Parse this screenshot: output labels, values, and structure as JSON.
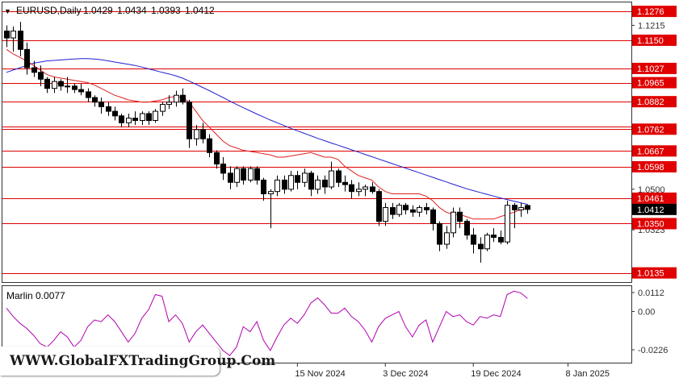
{
  "chart_data": [
    {
      "type": "candlestick",
      "title": "EURUSD,Daily",
      "ohlc_readout": [
        "1.0429",
        "1.0434",
        "1.0393",
        "1.0412"
      ],
      "ylim": [
        1.0095,
        1.1315
      ],
      "ytick_labels": [
        "1.1215",
        "1.0500",
        "1.0323"
      ],
      "xtick_labels": [
        "15 Nov 2024",
        "3 Dec 2024",
        "19 Dec 2024",
        "8 Jan 2025"
      ],
      "xtick_index": [
        43,
        56,
        69,
        83
      ],
      "grid": false,
      "current_price": 1.0412,
      "current_price_label": "1.0412",
      "levels": [
        {
          "label": "1.1276",
          "value": 1.1276
        },
        {
          "label": "1.1150",
          "value": 1.115
        },
        {
          "label": "1.1027",
          "value": 1.1027
        },
        {
          "label": "1.0965",
          "value": 1.0965
        },
        {
          "label": "1.0882",
          "value": 1.0882
        },
        {
          "label": "1.0762",
          "value": 1.0762
        },
        {
          "label": "",
          "value": 1.0772
        },
        {
          "label": "1.0667",
          "value": 1.0667
        },
        {
          "label": "1.0598",
          "value": 1.0598
        },
        {
          "label": "1.0461",
          "value": 1.0461
        },
        {
          "label": "1.0350",
          "value": 1.035
        },
        {
          "label": "1.0135",
          "value": 1.0135
        }
      ],
      "candles": [
        [
          1.119,
          1.1215,
          1.112,
          1.116
        ],
        [
          1.116,
          1.121,
          1.11,
          1.119
        ],
        [
          1.119,
          1.123,
          1.108,
          1.111
        ],
        [
          1.111,
          1.114,
          1.1,
          1.103
        ],
        [
          1.103,
          1.106,
          1.099,
          1.101
        ],
        [
          1.101,
          1.104,
          1.095,
          1.098
        ],
        [
          1.098,
          1.099,
          1.092,
          1.094
        ],
        [
          1.094,
          1.099,
          1.092,
          1.097
        ],
        [
          1.097,
          1.098,
          1.093,
          1.095
        ],
        [
          1.095,
          1.099,
          1.092,
          1.095
        ],
        [
          1.095,
          1.096,
          1.092,
          1.0935
        ],
        [
          1.0935,
          1.096,
          1.091,
          1.0925
        ],
        [
          1.0925,
          1.094,
          1.088,
          1.09
        ],
        [
          1.09,
          1.091,
          1.086,
          1.088
        ],
        [
          1.088,
          1.09,
          1.083,
          1.086
        ],
        [
          1.086,
          1.088,
          1.082,
          1.084
        ],
        [
          1.084,
          1.086,
          1.08,
          1.082
        ],
        [
          1.082,
          1.083,
          1.077,
          1.079
        ],
        [
          1.079,
          1.083,
          1.077,
          1.081
        ],
        [
          1.081,
          1.084,
          1.078,
          1.08
        ],
        [
          1.08,
          1.084,
          1.078,
          1.083
        ],
        [
          1.083,
          1.084,
          1.078,
          1.08
        ],
        [
          1.08,
          1.085,
          1.079,
          1.084
        ],
        [
          1.084,
          1.088,
          1.082,
          1.087
        ],
        [
          1.087,
          1.091,
          1.085,
          1.088
        ],
        [
          1.088,
          1.093,
          1.086,
          1.091
        ],
        [
          1.091,
          1.094,
          1.087,
          1.088
        ],
        [
          1.088,
          1.089,
          1.068,
          1.072
        ],
        [
          1.072,
          1.078,
          1.069,
          1.076
        ],
        [
          1.076,
          1.079,
          1.07,
          1.072
        ],
        [
          1.072,
          1.074,
          1.064,
          1.066
        ],
        [
          1.066,
          1.067,
          1.059,
          1.061
        ],
        [
          1.061,
          1.064,
          1.054,
          1.057
        ],
        [
          1.057,
          1.06,
          1.05,
          1.053
        ],
        [
          1.053,
          1.06,
          1.051,
          1.059
        ],
        [
          1.059,
          1.06,
          1.052,
          1.054
        ],
        [
          1.054,
          1.06,
          1.053,
          1.059
        ],
        [
          1.059,
          1.06,
          1.052,
          1.054
        ],
        [
          1.054,
          1.055,
          1.045,
          1.048
        ],
        [
          1.048,
          1.05,
          1.033,
          1.049
        ],
        [
          1.049,
          1.056,
          1.047,
          1.054
        ],
        [
          1.054,
          1.056,
          1.048,
          1.05
        ],
        [
          1.05,
          1.058,
          1.049,
          1.056
        ],
        [
          1.056,
          1.058,
          1.05,
          1.053
        ],
        [
          1.053,
          1.059,
          1.051,
          1.057
        ],
        [
          1.057,
          1.058,
          1.047,
          1.05
        ],
        [
          1.05,
          1.056,
          1.048,
          1.054
        ],
        [
          1.054,
          1.056,
          1.048,
          1.051
        ],
        [
          1.051,
          1.062,
          1.05,
          1.058
        ],
        [
          1.058,
          1.059,
          1.051,
          1.053
        ],
        [
          1.053,
          1.056,
          1.049,
          1.052
        ],
        [
          1.052,
          1.054,
          1.046,
          1.049
        ],
        [
          1.049,
          1.053,
          1.047,
          1.05
        ],
        [
          1.05,
          1.052,
          1.047,
          1.051
        ],
        [
          1.051,
          1.053,
          1.048,
          1.049
        ],
        [
          1.049,
          1.05,
          1.034,
          1.036
        ],
        [
          1.036,
          1.044,
          1.034,
          1.042
        ],
        [
          1.042,
          1.044,
          1.037,
          1.039
        ],
        [
          1.039,
          1.044,
          1.038,
          1.043
        ],
        [
          1.043,
          1.044,
          1.039,
          1.041
        ],
        [
          1.041,
          1.043,
          1.038,
          1.04
        ],
        [
          1.04,
          1.043,
          1.038,
          1.042
        ],
        [
          1.042,
          1.044,
          1.039,
          1.041
        ],
        [
          1.041,
          1.042,
          1.032,
          1.035
        ],
        [
          1.035,
          1.036,
          1.023,
          1.026
        ],
        [
          1.026,
          1.034,
          1.024,
          1.031
        ],
        [
          1.031,
          1.042,
          1.029,
          1.04
        ],
        [
          1.04,
          1.042,
          1.033,
          1.036
        ],
        [
          1.036,
          1.037,
          1.028,
          1.03
        ],
        [
          1.03,
          1.033,
          1.022,
          1.026
        ],
        [
          1.026,
          1.029,
          1.018,
          1.024
        ],
        [
          1.024,
          1.031,
          1.023,
          1.03
        ],
        [
          1.03,
          1.033,
          1.027,
          1.029
        ],
        [
          1.029,
          1.032,
          1.026,
          1.027
        ],
        [
          1.027,
          1.045,
          1.026,
          1.043
        ],
        [
          1.043,
          1.044,
          1.033,
          1.041
        ],
        [
          1.041,
          1.044,
          1.038,
          1.042
        ],
        [
          1.0429,
          1.0434,
          1.0393,
          1.0412
        ]
      ],
      "ma_red": [
        1.111,
        1.109,
        1.1075,
        1.106,
        1.104,
        1.102,
        1.1,
        1.099,
        1.0985,
        1.098,
        1.0975,
        1.097,
        1.0965,
        1.0955,
        1.094,
        1.0925,
        1.091,
        1.09,
        1.089,
        1.0885,
        1.088,
        1.088,
        1.0885,
        1.089,
        1.09,
        1.0905,
        1.09,
        1.088,
        1.084,
        1.08,
        1.077,
        1.074,
        1.071,
        1.069,
        1.068,
        1.067,
        1.0665,
        1.066,
        1.0655,
        1.065,
        1.064,
        1.064,
        1.0645,
        1.065,
        1.0655,
        1.066,
        1.065,
        1.064,
        1.064,
        1.063,
        1.06,
        1.058,
        1.056,
        1.055,
        1.054,
        1.051,
        1.049,
        1.048,
        1.048,
        1.048,
        1.048,
        1.048,
        1.047,
        1.045,
        1.042,
        1.04,
        1.039,
        1.039,
        1.038,
        1.037,
        1.037,
        1.037,
        1.037,
        1.038,
        1.039,
        1.04,
        1.041,
        1.042
      ],
      "ma_blue": [
        1.101,
        1.102,
        1.103,
        1.104,
        1.105,
        1.1055,
        1.106,
        1.1062,
        1.1064,
        1.1066,
        1.1068,
        1.107,
        1.107,
        1.1068,
        1.1065,
        1.106,
        1.1055,
        1.105,
        1.1045,
        1.104,
        1.1033,
        1.1025,
        1.1018,
        1.101,
        1.1003,
        1.0995,
        1.0985,
        1.0972,
        1.0958,
        1.0944,
        1.093,
        1.0915,
        1.09,
        1.0885,
        1.087,
        1.0856,
        1.0842,
        1.0828,
        1.0815,
        1.0802,
        1.079,
        1.0778,
        1.0766,
        1.0755,
        1.0744,
        1.0733,
        1.0722,
        1.0712,
        1.0702,
        1.0692,
        1.0682,
        1.0672,
        1.0662,
        1.0652,
        1.0642,
        1.0632,
        1.0622,
        1.0612,
        1.0602,
        1.0592,
        1.0582,
        1.0572,
        1.0562,
        1.0552,
        1.0542,
        1.0532,
        1.0522,
        1.0512,
        1.0502,
        1.0494,
        1.0486,
        1.0478,
        1.047,
        1.0462,
        1.0455,
        1.0448,
        1.0441,
        1.0434
      ]
    },
    {
      "type": "line",
      "title": "Marlin 0.0077",
      "ylim": [
        -0.0302,
        0.015
      ],
      "ytick_labels": [
        "0.0112",
        "0.00",
        "-0.0226"
      ],
      "series": [
        {
          "values": [
            0.002,
            -0.003,
            -0.007,
            -0.01,
            -0.014,
            -0.019,
            -0.021,
            -0.017,
            -0.012,
            -0.015,
            -0.021,
            -0.017,
            -0.009,
            -0.005,
            -0.006,
            -0.002,
            -0.006,
            -0.012,
            -0.018,
            -0.013,
            -0.004,
            0.001,
            0.01,
            0.009,
            -0.006,
            -0.002,
            -0.007,
            -0.018,
            -0.012,
            -0.008,
            -0.013,
            -0.018,
            -0.023,
            -0.026,
            -0.021,
            -0.009,
            -0.012,
            -0.006,
            -0.017,
            -0.023,
            -0.015,
            -0.008,
            -0.004,
            -0.007,
            -0.002,
            0.005,
            0.008,
            0.004,
            -0.001,
            -0.001,
            0.002,
            -0.003,
            -0.006,
            -0.011,
            -0.018,
            -0.009,
            -0.004,
            -0.002,
            0.0,
            -0.009,
            -0.015,
            -0.008,
            -0.005,
            -0.018,
            -0.009,
            0.0,
            -0.003,
            -0.002,
            -0.006,
            -0.008,
            -0.003,
            -0.004,
            -0.002,
            -0.003,
            0.01,
            0.012,
            0.011,
            0.0077
          ]
        }
      ]
    }
  ],
  "watermark": "WWW.GlobalFXTradingGroup.Com"
}
